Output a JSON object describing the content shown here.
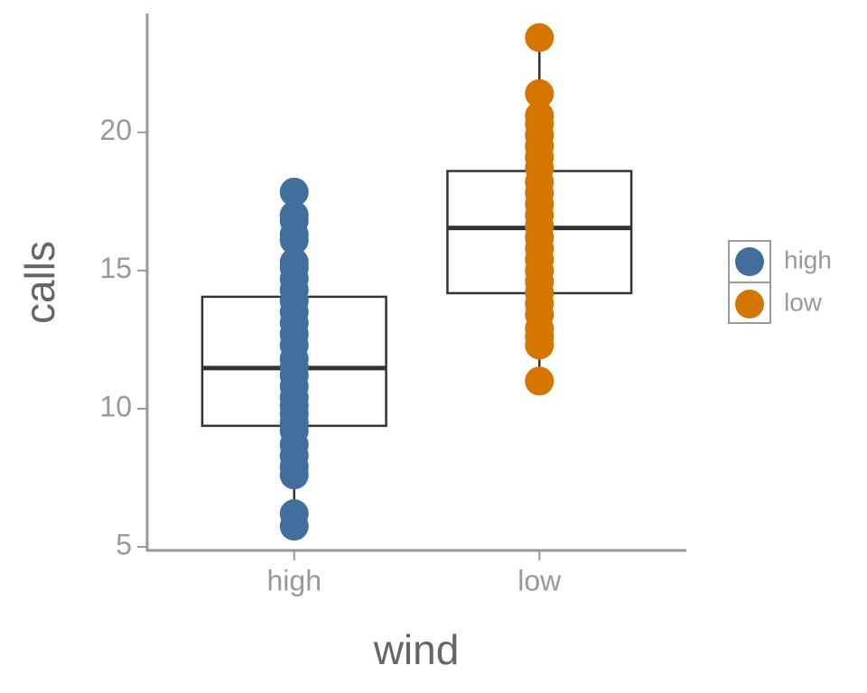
{
  "chart_data": {
    "type": "box",
    "x_label": "wind",
    "y_label": "calls",
    "categories": [
      "high",
      "low"
    ],
    "ylim": [
      4.87,
      24.3
    ],
    "yticks": [
      5,
      10,
      15,
      20
    ],
    "boxes": [
      {
        "min": 5.75,
        "q1": 9.38,
        "median": 11.47,
        "q3": 14.05,
        "max": 17.84
      },
      {
        "min": 11.0,
        "q1": 14.18,
        "median": 16.54,
        "q3": 18.6,
        "max": 23.43
      }
    ],
    "series": [
      {
        "name": "high",
        "color": "#416e9c",
        "values": [
          5.75,
          6.2,
          7.6,
          7.9,
          8.3,
          8.7,
          9.2,
          9.5,
          9.8,
          10.1,
          10.4,
          10.8,
          11.2,
          11.5,
          11.8,
          12.3,
          12.7,
          13.1,
          13.5,
          13.9,
          14.3,
          14.7,
          15.1,
          15.3,
          16.1,
          16.3,
          16.8,
          17.0,
          17.84
        ]
      },
      {
        "name": "low",
        "color": "#d47500",
        "values": [
          11.0,
          12.3,
          12.6,
          12.9,
          13.4,
          13.8,
          14.2,
          14.6,
          15.0,
          15.4,
          15.8,
          16.2,
          16.6,
          17.0,
          17.4,
          17.8,
          18.2,
          18.7,
          19.1,
          19.5,
          19.9,
          20.3,
          20.6,
          21.4,
          23.43
        ]
      }
    ],
    "legend": "right"
  }
}
